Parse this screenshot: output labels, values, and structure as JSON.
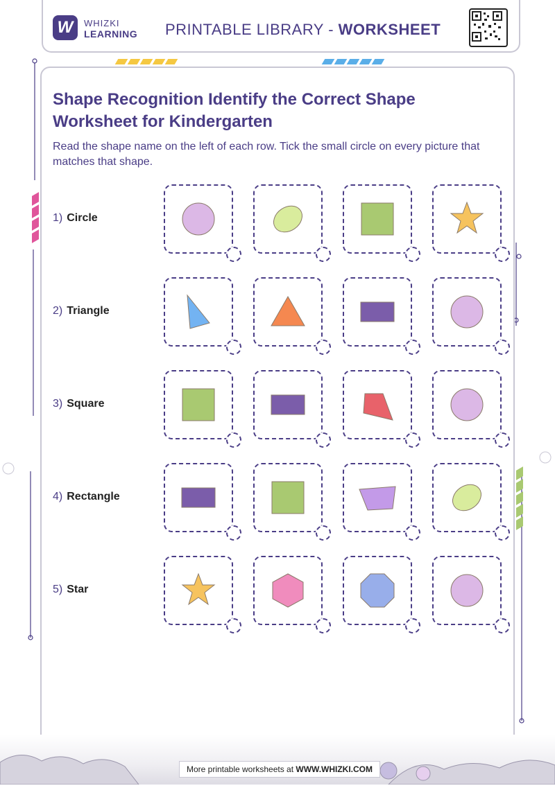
{
  "header": {
    "logo_letter": "W",
    "brand_line1": "WHIZKI",
    "brand_line2": "LEARNING",
    "library_prefix": "PRINTABLE LIBRARY - ",
    "library_suffix": "WORKSHEET"
  },
  "title": "Shape Recognition Identify the Correct Shape Worksheet for Kindergarten",
  "instructions": "Read the shape name on the left of each row. Tick the small circle on every picture that matches that shape.",
  "rows": [
    {
      "number": "1)",
      "label": "Circle",
      "options": [
        {
          "shape": "circle-icon",
          "color": "#dcb8e6"
        },
        {
          "shape": "oval-icon",
          "color": "#d9ec9d"
        },
        {
          "shape": "square-icon",
          "color": "#a9c971"
        },
        {
          "shape": "star-icon",
          "color": "#f6c35e"
        }
      ]
    },
    {
      "number": "2)",
      "label": "Triangle",
      "options": [
        {
          "shape": "right-triangle-icon",
          "color": "#73b3f2"
        },
        {
          "shape": "triangle-icon",
          "color": "#f58850"
        },
        {
          "shape": "rectangle-icon",
          "color": "#7b5daa"
        },
        {
          "shape": "circle-icon",
          "color": "#dcb8e6"
        }
      ]
    },
    {
      "number": "3)",
      "label": "Square",
      "options": [
        {
          "shape": "square-icon",
          "color": "#a9c971"
        },
        {
          "shape": "rectangle-icon",
          "color": "#7b5daa"
        },
        {
          "shape": "quadrilateral-icon",
          "color": "#e8626a"
        },
        {
          "shape": "circle-icon",
          "color": "#dcb8e6"
        }
      ]
    },
    {
      "number": "4)",
      "label": "Rectangle",
      "options": [
        {
          "shape": "rectangle-icon",
          "color": "#7b5daa"
        },
        {
          "shape": "square-icon",
          "color": "#a9c971"
        },
        {
          "shape": "trapezoid-icon",
          "color": "#c39ae8"
        },
        {
          "shape": "oval-icon",
          "color": "#d9ec9d"
        }
      ]
    },
    {
      "number": "5)",
      "label": "Star",
      "options": [
        {
          "shape": "star-icon",
          "color": "#f6c35e"
        },
        {
          "shape": "hexagon-icon",
          "color": "#f08cbd"
        },
        {
          "shape": "octagon-icon",
          "color": "#98aeea"
        },
        {
          "shape": "circle-icon",
          "color": "#dcb8e6"
        }
      ]
    }
  ],
  "footer": {
    "prefix": "More printable worksheets at ",
    "site": "WWW.WHIZKI.COM"
  },
  "colors": {
    "brand": "#4a3d86",
    "stripe_yellow": "#f5c842",
    "stripe_blue": "#5aaee8",
    "stripe_pink": "#e0559b",
    "stripe_green": "#a9c971"
  }
}
